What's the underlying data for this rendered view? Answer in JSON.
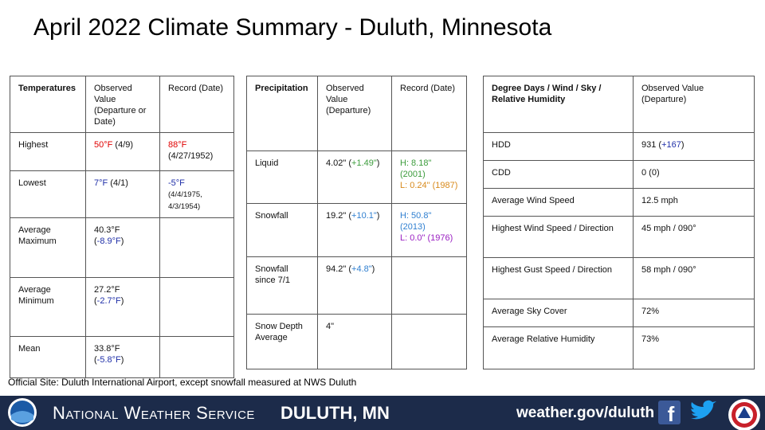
{
  "title": "April 2022 Climate Summary - Duluth, Minnesota",
  "tables": [
    {
      "rows": [
        [
          [
            [
              {
                "text": "Temperatures",
                "bold": true
              }
            ]
          ],
          [
            [
              {
                "text": "Observed Value (Departure or Date)"
              }
            ]
          ],
          [
            [
              {
                "text": "Record (Date)"
              }
            ]
          ]
        ],
        [
          [
            [
              {
                "text": "Highest"
              }
            ]
          ],
          [
            [
              {
                "text": "50°F",
                "color": "#e00000"
              },
              {
                "text": " (4/9)"
              }
            ]
          ],
          [
            [
              {
                "text": "88°F",
                "color": "#e00000"
              },
              {
                "text": " (4/27/1952)"
              }
            ]
          ]
        ],
        [
          [
            [
              {
                "text": "Lowest"
              }
            ]
          ],
          [
            [
              {
                "text": "7°F",
                "color": "#1f2fa8"
              },
              {
                "text": " (4/1)"
              }
            ]
          ],
          [
            [
              {
                "text": "-5°F",
                "color": "#1f2fa8"
              }
            ],
            [
              {
                "text": "(4/4/1975, 4/3/1954)",
                "small": true
              }
            ]
          ]
        ],
        [
          [
            [
              {
                "text": "Average Maximum"
              }
            ]
          ],
          [
            [
              {
                "text": "40.3°F ("
              },
              {
                "text": "-8.9°F",
                "color": "#1f2fa8"
              },
              {
                "text": ")"
              }
            ]
          ],
          []
        ],
        [
          [
            [
              {
                "text": "Average Minimum"
              }
            ]
          ],
          [
            [
              {
                "text": "27.2°F ("
              },
              {
                "text": "-2.7°F",
                "color": "#1f2fa8"
              },
              {
                "text": ")"
              }
            ]
          ],
          []
        ],
        [
          [
            [
              {
                "text": "Mean"
              }
            ]
          ],
          [
            [
              {
                "text": "33.8°F ("
              },
              {
                "text": "-5.8°F",
                "color": "#1f2fa8"
              },
              {
                "text": ")"
              }
            ]
          ],
          []
        ]
      ]
    },
    {
      "rows": [
        [
          [
            [
              {
                "text": "Precipitation",
                "bold": true
              }
            ]
          ],
          [
            [
              {
                "text": "Observed Value (Departure)"
              }
            ]
          ],
          [
            [
              {
                "text": "Record (Date)"
              }
            ]
          ]
        ],
        [
          [
            [
              {
                "text": "Liquid"
              }
            ]
          ],
          [
            [
              {
                "text": "4.02\" ("
              },
              {
                "text": "+1.49\"",
                "color": "#3c9c3c"
              },
              {
                "text": ")"
              }
            ]
          ],
          [
            [
              {
                "text": "H: 8.18\" (2001)",
                "color": "#3c9c3c"
              }
            ],
            [
              {
                "text": "L: 0.24\" (1987)",
                "color": "#d88a1c"
              }
            ]
          ]
        ],
        [
          [
            [
              {
                "text": "Snowfall"
              }
            ]
          ],
          [
            [
              {
                "text": "19.2\" ("
              },
              {
                "text": "+10.1\"",
                "color": "#2f7fd0"
              },
              {
                "text": ")"
              }
            ]
          ],
          [
            [
              {
                "text": "H: 50.8\" (2013)",
                "color": "#2f7fd0"
              }
            ],
            [
              {
                "text": "L: 0.0\" (1976)",
                "color": "#9a1fc2"
              }
            ]
          ]
        ],
        [
          [
            [
              {
                "text": "Snowfall since 7/1"
              }
            ]
          ],
          [
            [
              {
                "text": "94.2\" ("
              },
              {
                "text": "+4.8\"",
                "color": "#2f7fd0"
              },
              {
                "text": ")"
              }
            ]
          ],
          []
        ],
        [
          [
            [
              {
                "text": "Snow Depth Average"
              }
            ]
          ],
          [
            [
              {
                "text": "4\""
              }
            ]
          ],
          []
        ]
      ]
    },
    {
      "rows": [
        [
          [
            [
              {
                "text": "Degree Days / Wind / Sky / Relative Humidity",
                "bold": true
              }
            ]
          ],
          [
            [
              {
                "text": "Observed Value (Departure)"
              }
            ]
          ]
        ],
        [
          [
            [
              {
                "text": "HDD"
              }
            ]
          ],
          [
            [
              {
                "text": "931 ("
              },
              {
                "text": "+167",
                "color": "#1f2fa8"
              },
              {
                "text": ")"
              }
            ]
          ]
        ],
        [
          [
            [
              {
                "text": "CDD"
              }
            ]
          ],
          [
            [
              {
                "text": "0 (0)"
              }
            ]
          ]
        ],
        [
          [
            [
              {
                "text": "Average Wind Speed"
              }
            ]
          ],
          [
            [
              {
                "text": "12.5 mph"
              }
            ]
          ]
        ],
        [
          [
            [
              {
                "text": "Highest Wind Speed / Direction"
              }
            ]
          ],
          [
            [
              {
                "text": "45 mph / 090°"
              }
            ]
          ]
        ],
        [
          [
            [
              {
                "text": "Highest Gust Speed / Direction"
              }
            ]
          ],
          [
            [
              {
                "text": "58 mph / 090°"
              }
            ]
          ]
        ],
        [
          [
            [
              {
                "text": "Average Sky Cover"
              }
            ]
          ],
          [
            [
              {
                "text": "72%"
              }
            ]
          ]
        ],
        [
          [
            [
              {
                "text": "Average Relative Humidity"
              }
            ]
          ],
          [
            [
              {
                "text": "73%"
              }
            ]
          ]
        ]
      ]
    }
  ],
  "footnote": "Official Site: Duluth International Airport, except snowfall measured at NWS Duluth",
  "footer": {
    "agency": "National Weather Service",
    "office": "Duluth, MN",
    "url": "weather.gov/duluth"
  }
}
